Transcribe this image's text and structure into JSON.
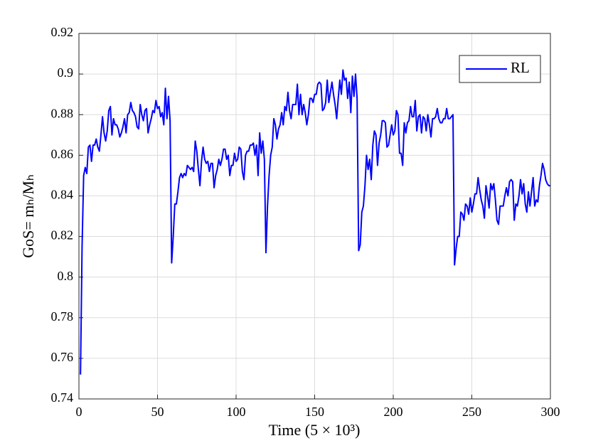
{
  "chart_data": {
    "type": "line",
    "xlabel": "Time (5 × 10³)",
    "ylabel": "GoS= mₕ/Mₕ",
    "xlim": [
      0,
      300
    ],
    "xticks": [
      0,
      50,
      100,
      150,
      200,
      250,
      300
    ],
    "ylim": [
      0.74,
      0.92
    ],
    "yticks": [
      0.74,
      0.76,
      0.78,
      0.8,
      0.82,
      0.84,
      0.86,
      0.88,
      0.9,
      0.92
    ],
    "grid": true,
    "legend": "upper right",
    "x": [
      1,
      2,
      3,
      4,
      5,
      6,
      7,
      8,
      9,
      10,
      11,
      12,
      13,
      14,
      15,
      16,
      17,
      18,
      19,
      20,
      21,
      22,
      23,
      24,
      25,
      26,
      27,
      28,
      29,
      30,
      31,
      32,
      33,
      34,
      35,
      36,
      37,
      38,
      39,
      40,
      41,
      42,
      43,
      44,
      45,
      46,
      47,
      48,
      49,
      50,
      51,
      52,
      53,
      54,
      55,
      56,
      57,
      58,
      59,
      60,
      61,
      62,
      63,
      64,
      65,
      66,
      67,
      68,
      69,
      70,
      71,
      72,
      73,
      74,
      75,
      76,
      77,
      78,
      79,
      80,
      81,
      82,
      83,
      84,
      85,
      86,
      87,
      88,
      89,
      90,
      91,
      92,
      93,
      94,
      95,
      96,
      97,
      98,
      99,
      100,
      101,
      102,
      103,
      104,
      105,
      106,
      107,
      108,
      109,
      110,
      111,
      112,
      113,
      114,
      115,
      116,
      117,
      118,
      119,
      120,
      121,
      122,
      123,
      124,
      125,
      126,
      127,
      128,
      129,
      130,
      131,
      132,
      133,
      134,
      135,
      136,
      137,
      138,
      139,
      140,
      141,
      142,
      143,
      144,
      145,
      146,
      147,
      148,
      149,
      150,
      151,
      152,
      153,
      154,
      155,
      156,
      157,
      158,
      159,
      160,
      161,
      162,
      163,
      164,
      165,
      166,
      167,
      168,
      169,
      170,
      171,
      172,
      173,
      174,
      175,
      176,
      177,
      178,
      179,
      180,
      181,
      182,
      183,
      184,
      185,
      186,
      187,
      188,
      189,
      190,
      191,
      192,
      193,
      194,
      195,
      196,
      197,
      198,
      199,
      200,
      201,
      202,
      203,
      204,
      205,
      206,
      207,
      208,
      209,
      210,
      211,
      212,
      213,
      214,
      215,
      216,
      217,
      218,
      219,
      220,
      221,
      222,
      223,
      224,
      225,
      226,
      227,
      228,
      229,
      230,
      231,
      232,
      233,
      234,
      235,
      236,
      237,
      238,
      239,
      240,
      241,
      242,
      243,
      244,
      245,
      246,
      247,
      248,
      249,
      250,
      251,
      252,
      253,
      254,
      255,
      256,
      257,
      258,
      259,
      260,
      261,
      262,
      263,
      264,
      265,
      266,
      267,
      268,
      269,
      270,
      271,
      272,
      273,
      274,
      275,
      276,
      277,
      278,
      279,
      280,
      281,
      282,
      283,
      284,
      285,
      286,
      287,
      288,
      289,
      290,
      291,
      292,
      293,
      294,
      295,
      296,
      297,
      298,
      299,
      300
    ],
    "series": [
      {
        "name": "RL",
        "color": "#0000ff",
        "values": [
          0.752,
          0.815,
          0.85,
          0.854,
          0.851,
          0.864,
          0.865,
          0.857,
          0.865,
          0.865,
          0.868,
          0.864,
          0.862,
          0.87,
          0.879,
          0.871,
          0.867,
          0.872,
          0.882,
          0.884,
          0.87,
          0.878,
          0.875,
          0.875,
          0.873,
          0.869,
          0.871,
          0.874,
          0.878,
          0.871,
          0.88,
          0.881,
          0.886,
          0.882,
          0.881,
          0.879,
          0.874,
          0.873,
          0.885,
          0.88,
          0.877,
          0.882,
          0.883,
          0.871,
          0.875,
          0.878,
          0.882,
          0.881,
          0.887,
          0.883,
          0.884,
          0.879,
          0.881,
          0.875,
          0.893,
          0.878,
          0.889,
          0.877,
          0.807,
          0.82,
          0.836,
          0.836,
          0.842,
          0.849,
          0.851,
          0.849,
          0.851,
          0.85,
          0.855,
          0.854,
          0.853,
          0.854,
          0.852,
          0.867,
          0.862,
          0.853,
          0.845,
          0.857,
          0.864,
          0.858,
          0.856,
          0.857,
          0.852,
          0.856,
          0.856,
          0.844,
          0.85,
          0.853,
          0.858,
          0.855,
          0.858,
          0.863,
          0.863,
          0.858,
          0.86,
          0.85,
          0.855,
          0.855,
          0.861,
          0.857,
          0.858,
          0.864,
          0.863,
          0.852,
          0.848,
          0.86,
          0.862,
          0.862,
          0.865,
          0.865,
          0.866,
          0.86,
          0.865,
          0.85,
          0.871,
          0.861,
          0.867,
          0.858,
          0.812,
          0.835,
          0.85,
          0.86,
          0.864,
          0.878,
          0.875,
          0.868,
          0.873,
          0.875,
          0.881,
          0.875,
          0.884,
          0.882,
          0.891,
          0.882,
          0.878,
          0.885,
          0.885,
          0.885,
          0.895,
          0.88,
          0.89,
          0.88,
          0.885,
          0.881,
          0.875,
          0.88,
          0.888,
          0.888,
          0.886,
          0.89,
          0.89,
          0.895,
          0.896,
          0.895,
          0.882,
          0.883,
          0.886,
          0.897,
          0.886,
          0.891,
          0.896,
          0.89,
          0.885,
          0.878,
          0.888,
          0.897,
          0.89,
          0.902,
          0.897,
          0.898,
          0.888,
          0.896,
          0.881,
          0.899,
          0.889,
          0.9,
          0.888,
          0.813,
          0.816,
          0.832,
          0.835,
          0.845,
          0.86,
          0.853,
          0.858,
          0.848,
          0.865,
          0.872,
          0.87,
          0.855,
          0.866,
          0.87,
          0.877,
          0.877,
          0.876,
          0.864,
          0.865,
          0.87,
          0.875,
          0.87,
          0.872,
          0.882,
          0.88,
          0.861,
          0.861,
          0.855,
          0.876,
          0.871,
          0.876,
          0.877,
          0.884,
          0.879,
          0.879,
          0.887,
          0.872,
          0.879,
          0.88,
          0.871,
          0.879,
          0.878,
          0.872,
          0.88,
          0.875,
          0.869,
          0.878,
          0.878,
          0.879,
          0.883,
          0.878,
          0.876,
          0.876,
          0.878,
          0.878,
          0.883,
          0.878,
          0.878,
          0.879,
          0.88,
          0.806,
          0.814,
          0.82,
          0.82,
          0.832,
          0.831,
          0.828,
          0.836,
          0.835,
          0.831,
          0.839,
          0.832,
          0.836,
          0.841,
          0.841,
          0.849,
          0.843,
          0.838,
          0.835,
          0.829,
          0.845,
          0.84,
          0.834,
          0.846,
          0.843,
          0.846,
          0.838,
          0.828,
          0.826,
          0.835,
          0.835,
          0.835,
          0.84,
          0.844,
          0.84,
          0.847,
          0.848,
          0.847,
          0.828,
          0.836,
          0.835,
          0.84,
          0.848,
          0.841,
          0.846,
          0.836,
          0.832,
          0.842,
          0.835,
          0.842,
          0.849,
          0.835,
          0.838,
          0.837,
          0.845,
          0.85,
          0.856,
          0.853,
          0.848,
          0.846,
          0.845,
          0.845
        ]
      }
    ]
  }
}
